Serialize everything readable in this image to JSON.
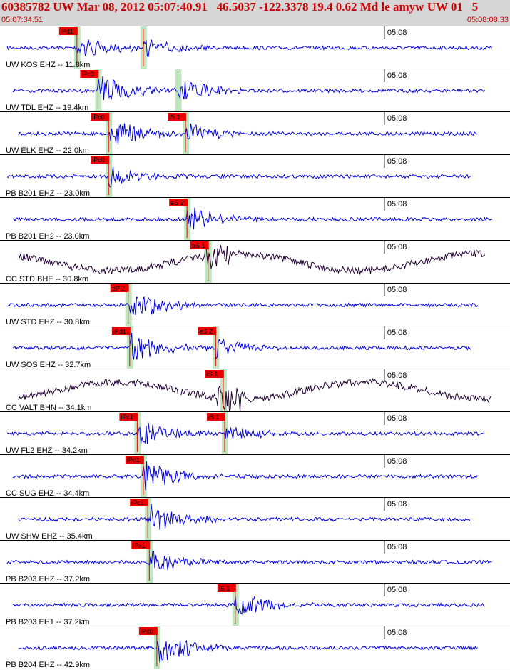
{
  "header": {
    "title": "60385782 UW Mar 08, 2012 05:07:40.91   46.5037 -122.3378 19.4 0.62 Md le amyw UW 01   5",
    "start_time": "05:07:34.51",
    "end_time": "05:08:08.33"
  },
  "time_tick_label": "05:08",
  "colors": {
    "trace_short_period": "#0000dd",
    "trace_broadband": "#220033",
    "pick_box": "#ee0000",
    "pick_window": "#bfe6bf",
    "header_bg": "#d6d6d6"
  },
  "traces": [
    {
      "label": "UW KOS EHZ -- 11.8km",
      "type": "short_period",
      "picks": [
        {
          "phase": "iPd1",
          "time": 5.1
        },
        {
          "phase": "",
          "time": 9.5
        }
      ],
      "amp_scale": 0.7
    },
    {
      "label": "UW TDL EHZ -- 19.4km",
      "type": "short_period",
      "picks": [
        {
          "phase": "iPc0",
          "time": 6.5
        },
        {
          "phase": "",
          "time": 11.8
        }
      ],
      "amp_scale": 1.0
    },
    {
      "label": "UW ELK EHZ -- 22.0km",
      "type": "short_period",
      "picks": [
        {
          "phase": "iPc0",
          "time": 7.2
        },
        {
          "phase": "iS 1",
          "time": 12.3
        }
      ],
      "amp_scale": 0.9
    },
    {
      "label": "PB B201 EHZ -- 23.0km",
      "type": "short_period",
      "picks": [
        {
          "phase": "iPc0",
          "time": 7.2
        }
      ],
      "amp_scale": 0.7
    },
    {
      "label": "PB B201 EH2 -- 23.0km",
      "type": "short_period",
      "picks": [
        {
          "phase": "eS 2",
          "time": 12.4
        }
      ],
      "amp_scale": 0.8
    },
    {
      "label": "CC STD BHE -- 30.8km",
      "type": "broadband",
      "picks": [
        {
          "phase": "eS 1",
          "time": 13.8
        }
      ],
      "amp_scale": 1.0
    },
    {
      "label": "UW STD EHZ -- 30.8km",
      "type": "short_period",
      "picks": [
        {
          "phase": "eP 2",
          "time": 8.5
        }
      ],
      "amp_scale": 1.0
    },
    {
      "label": "UW SOS EHZ -- 32.7km",
      "type": "short_period",
      "picks": [
        {
          "phase": "iPd1",
          "time": 8.6
        },
        {
          "phase": "eS 2",
          "time": 14.3
        }
      ],
      "amp_scale": 0.9
    },
    {
      "label": "CC VALT BHN -- 34.1km",
      "type": "broadband",
      "picks": [
        {
          "phase": "iS 1",
          "time": 14.8
        }
      ],
      "amp_scale": 1.0
    },
    {
      "label": "UW FL2 EHZ -- 34.2km",
      "type": "short_period",
      "picks": [
        {
          "phase": "iPc1",
          "time": 9.1
        },
        {
          "phase": "iS 1",
          "time": 14.9
        }
      ],
      "amp_scale": 0.8
    },
    {
      "label": "CC SUG EHZ -- 34.4km",
      "type": "short_period",
      "picks": [
        {
          "phase": "iPd1",
          "time": 9.5
        }
      ],
      "amp_scale": 0.9
    },
    {
      "label": "UW SHW EHZ -- 35.4km",
      "type": "short_period",
      "picks": [
        {
          "phase": "iPc1",
          "time": 9.8
        }
      ],
      "amp_scale": 1.0
    },
    {
      "label": "PB B203 EHZ -- 37.2km",
      "type": "short_period",
      "picks": [
        {
          "phase": "iPx1",
          "time": 9.9
        }
      ],
      "amp_scale": 0.7
    },
    {
      "label": "PB B203 EH1 -- 37.2km",
      "type": "short_period",
      "picks": [
        {
          "phase": "iS 1",
          "time": 15.6
        }
      ],
      "amp_scale": 0.8
    },
    {
      "label": "PB B204 EHZ -- 42.9km",
      "type": "short_period",
      "picks": [
        {
          "phase": "iPc0",
          "time": 10.4
        }
      ],
      "amp_scale": 1.0
    }
  ]
}
